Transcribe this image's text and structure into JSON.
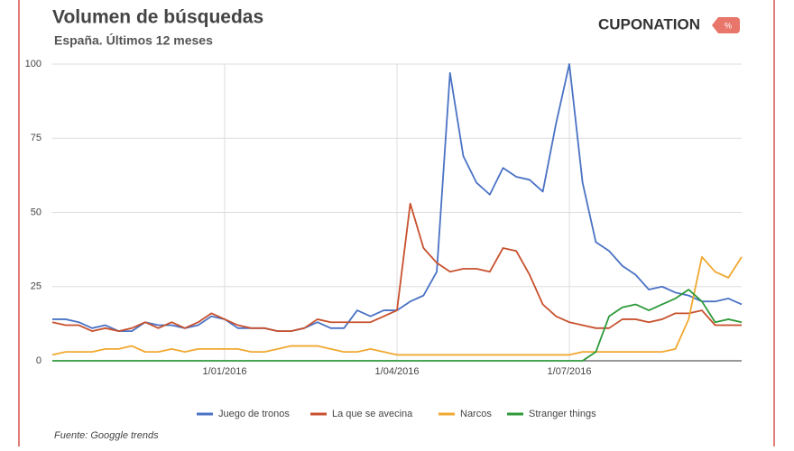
{
  "header": {
    "logo": "CUPONATION"
  },
  "chart_data": {
    "type": "line",
    "title": "Volumen de búsquedas",
    "subtitle": "España. Últimos 12 meses",
    "source": "Fuente: Googgle trends",
    "categories": [
      null,
      null,
      null,
      null,
      null,
      null,
      null,
      null,
      null,
      null,
      null,
      null,
      null,
      "1/01/2016",
      null,
      null,
      null,
      null,
      null,
      null,
      null,
      null,
      null,
      null,
      null,
      null,
      "1/04/2016",
      null,
      null,
      null,
      null,
      null,
      null,
      null,
      null,
      null,
      null,
      null,
      null,
      "1/07/2016",
      null,
      null,
      null,
      null,
      null,
      null,
      null,
      null,
      null,
      null,
      null,
      null,
      null
    ],
    "series": [
      {
        "name": "Juego de tronos",
        "color": "#4a72c4",
        "values": [
          14,
          14,
          13,
          11,
          12,
          10,
          10,
          13,
          12,
          12,
          11,
          12,
          15,
          14,
          11,
          11,
          11,
          10,
          10,
          11,
          13,
          11,
          11,
          17,
          15,
          17,
          17,
          20,
          22,
          30,
          97,
          69,
          60,
          56,
          65,
          62,
          61,
          57,
          80,
          100,
          60,
          40,
          37,
          32,
          29,
          24,
          25,
          23,
          22,
          20,
          20,
          21,
          19
        ]
      },
      {
        "name": "La que se avecina",
        "color": "#c8502d",
        "values": [
          13,
          12,
          12,
          10,
          11,
          10,
          11,
          13,
          11,
          13,
          11,
          13,
          16,
          14,
          12,
          11,
          11,
          10,
          10,
          11,
          14,
          13,
          13,
          13,
          13,
          15,
          17,
          53,
          38,
          33,
          30,
          31,
          31,
          30,
          38,
          37,
          29,
          19,
          15,
          13,
          12,
          11,
          11,
          14,
          14,
          13,
          14,
          16,
          16,
          17,
          12,
          12,
          12
        ]
      },
      {
        "name": "Narcos",
        "color": "#f0a830",
        "values": [
          2,
          3,
          3,
          3,
          4,
          4,
          5,
          3,
          3,
          4,
          3,
          4,
          4,
          4,
          4,
          3,
          3,
          4,
          5,
          5,
          5,
          4,
          3,
          3,
          4,
          3,
          2,
          2,
          2,
          2,
          2,
          2,
          2,
          2,
          2,
          2,
          2,
          2,
          2,
          2,
          3,
          3,
          3,
          3,
          3,
          3,
          3,
          4,
          14,
          35,
          30,
          28,
          35
        ]
      },
      {
        "name": "Stranger things",
        "color": "#2e9a3a",
        "values": [
          0,
          0,
          0,
          0,
          0,
          0,
          0,
          0,
          0,
          0,
          0,
          0,
          0,
          0,
          0,
          0,
          0,
          0,
          0,
          0,
          0,
          0,
          0,
          0,
          0,
          0,
          0,
          0,
          0,
          0,
          0,
          0,
          0,
          0,
          0,
          0,
          0,
          0,
          0,
          0,
          0,
          3,
          15,
          18,
          19,
          17,
          19,
          21,
          24,
          20,
          13,
          14,
          13
        ]
      }
    ],
    "ylim": [
      0,
      100
    ],
    "yticks": [
      0,
      25,
      50,
      75,
      100
    ],
    "grid": true
  }
}
